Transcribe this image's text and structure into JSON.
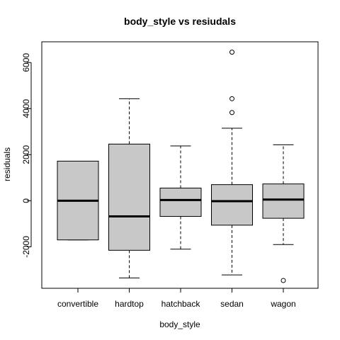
{
  "chart_data": {
    "type": "box",
    "title": "body_style  vs resiudals",
    "xlabel": "body_style",
    "ylabel": "residuals",
    "ylim": [
      -3800,
      6900
    ],
    "yticks": [
      -2000,
      0,
      2000,
      4000,
      6000
    ],
    "categories": [
      "convertible",
      "hardtop",
      "hatchback",
      "sedan",
      "wagon"
    ],
    "boxes": [
      {
        "category": "convertible",
        "min": -1700,
        "q1": -1700,
        "median": 0,
        "q3": 1720,
        "max": 1720,
        "outliers": []
      },
      {
        "category": "hardtop",
        "min": -3350,
        "q1": -2150,
        "median": -680,
        "q3": 2460,
        "max": 4430,
        "outliers": []
      },
      {
        "category": "hatchback",
        "min": -2100,
        "q1": -680,
        "median": 30,
        "q3": 550,
        "max": 2380,
        "outliers": []
      },
      {
        "category": "sedan",
        "min": -3220,
        "q1": -1060,
        "median": -20,
        "q3": 700,
        "max": 3150,
        "outliers": [
          3830,
          4430,
          6450
        ]
      },
      {
        "category": "wagon",
        "min": -1900,
        "q1": -760,
        "median": 50,
        "q3": 730,
        "max": 2430,
        "outliers": [
          -3460
        ]
      }
    ],
    "box_fill": "#c8c8c8",
    "grid": false
  }
}
